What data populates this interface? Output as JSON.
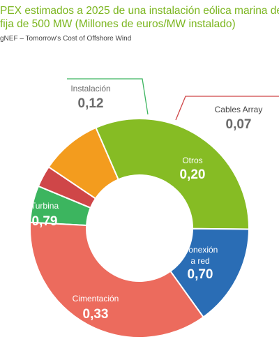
{
  "header": {
    "title_line1": "PEX estimados a 2025 de una instalación eólica marina de",
    "title_line2": "fija de 500 MW (Millones de euros/MW instalado)",
    "source": "gNEF – Tomorrow's Cost of Offshore Wind"
  },
  "chart_data": {
    "type": "pie",
    "variant": "donut",
    "title": "",
    "slices": [
      {
        "label": "Instalación",
        "value": 0.12,
        "display": "0,12",
        "color": "#3cb55f",
        "label_position": "outside-top"
      },
      {
        "label": "Cables Array",
        "value": 0.07,
        "display": "0,07",
        "color": "#cf4648",
        "label_position": "outside-right"
      },
      {
        "label": "Otros",
        "value": 0.2,
        "display": "0,20",
        "color": "#f39c1e",
        "label_position": "inside"
      },
      {
        "label": "Conexión a red",
        "label_lines": [
          "Conexión",
          "a red"
        ],
        "value": 0.7,
        "display": "0,70",
        "color": "#86bc24",
        "label_position": "inside"
      },
      {
        "label": "Cimentación",
        "value": 0.33,
        "display": "0,33",
        "color": "#2a6db5",
        "label_position": "inside"
      },
      {
        "label": "Turbina",
        "value": 0.79,
        "display": "0,79",
        "color": "#ec6b5d",
        "label_position": "inside"
      }
    ],
    "legend": "none",
    "grid": false
  }
}
